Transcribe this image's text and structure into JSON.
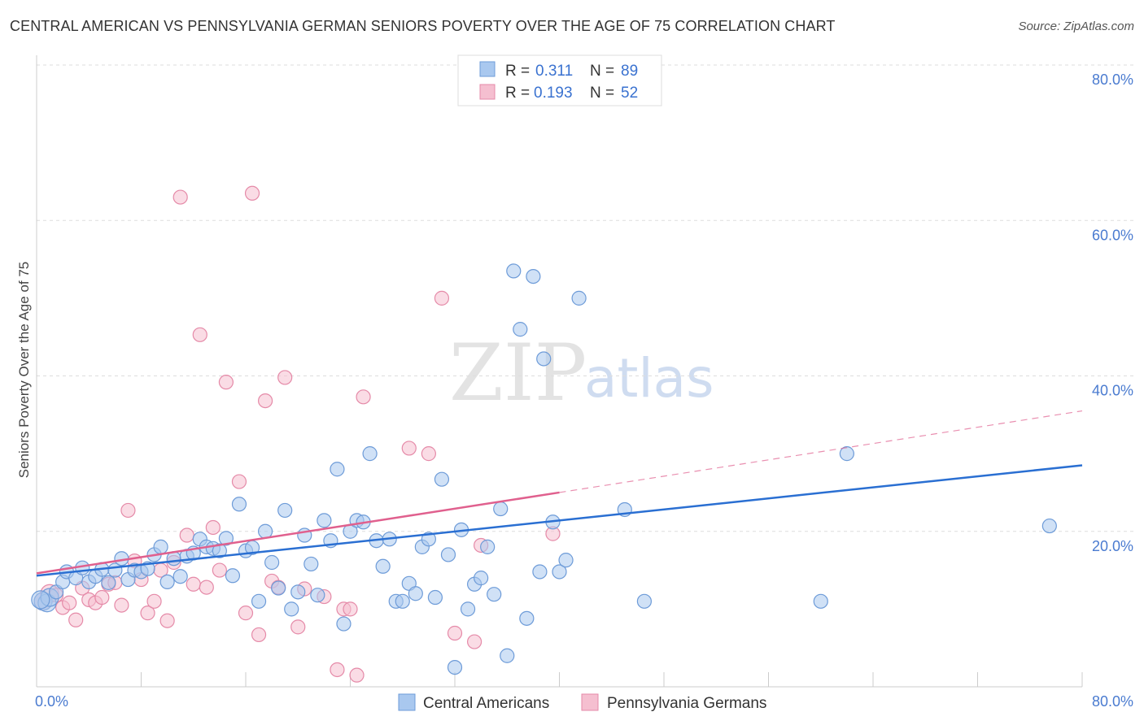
{
  "title": "CENTRAL AMERICAN VS PENNSYLVANIA GERMAN SENIORS POVERTY OVER THE AGE OF 75 CORRELATION CHART",
  "source": "Source: ZipAtlas.com",
  "watermark": {
    "zip": "ZIP",
    "atlas": "atlas"
  },
  "colors": {
    "blue_fill": "#a9c8ef",
    "blue_stroke": "#6d9bd8",
    "blue_line": "#2a6fd2",
    "pink_fill": "#f5bfd0",
    "pink_stroke": "#e58aa8",
    "pink_line": "#e0608e",
    "grid": "#dddddd",
    "axis_label": "#4a7bd0"
  },
  "legend": {
    "series": [
      {
        "r_label": "R =",
        "r_value": "0.311",
        "n_label": "N =",
        "n_value": "89"
      },
      {
        "r_label": "R =",
        "r_value": "0.193",
        "n_label": "N =",
        "n_value": "52"
      }
    ]
  },
  "chart_data": {
    "type": "scatter",
    "title": "CENTRAL AMERICAN VS PENNSYLVANIA GERMAN SENIORS POVERTY OVER THE AGE OF 75 CORRELATION CHART",
    "xlabel": "",
    "ylabel": "Seniors Poverty Over the Age of 75",
    "xlim": [
      0,
      80
    ],
    "ylim": [
      0,
      80
    ],
    "x_tick_labels": [
      "0.0%",
      "80.0%"
    ],
    "y_tick_labels": [
      "20.0%",
      "40.0%",
      "60.0%",
      "80.0%"
    ],
    "y_ticks": [
      20,
      40,
      60,
      80
    ],
    "grid": true,
    "legend_position": "top-center",
    "series": [
      {
        "name": "Central Americans",
        "r": 0.311,
        "n": 89,
        "trend": {
          "x": [
            0,
            80
          ],
          "y": [
            14.3,
            28.5
          ],
          "dashed_from": null
        },
        "points": [
          [
            0.5,
            11.0
          ],
          [
            0.8,
            10.8
          ],
          [
            1.0,
            11.5
          ],
          [
            1.5,
            12.2
          ],
          [
            2.0,
            13.5
          ],
          [
            2.3,
            14.8
          ],
          [
            3.0,
            14.0
          ],
          [
            3.5,
            15.3
          ],
          [
            4.0,
            13.5
          ],
          [
            4.5,
            14.2
          ],
          [
            5.0,
            15.1
          ],
          [
            5.5,
            13.4
          ],
          [
            6.0,
            15.0
          ],
          [
            6.5,
            16.5
          ],
          [
            7.0,
            13.8
          ],
          [
            7.5,
            15.0
          ],
          [
            8.0,
            14.8
          ],
          [
            8.5,
            15.2
          ],
          [
            9.0,
            17.0
          ],
          [
            9.5,
            18.0
          ],
          [
            10.0,
            13.5
          ],
          [
            10.5,
            16.5
          ],
          [
            11.0,
            14.2
          ],
          [
            11.5,
            16.8
          ],
          [
            12.0,
            17.2
          ],
          [
            12.5,
            19.0
          ],
          [
            13.0,
            18.0
          ],
          [
            13.5,
            17.8
          ],
          [
            14.0,
            17.5
          ],
          [
            14.5,
            19.1
          ],
          [
            15.0,
            14.3
          ],
          [
            15.5,
            23.5
          ],
          [
            16.0,
            17.5
          ],
          [
            16.5,
            17.9
          ],
          [
            17.0,
            11.0
          ],
          [
            17.5,
            20.0
          ],
          [
            18.0,
            16.0
          ],
          [
            18.5,
            12.7
          ],
          [
            19.0,
            22.7
          ],
          [
            19.5,
            10.0
          ],
          [
            20.0,
            12.2
          ],
          [
            20.5,
            19.5
          ],
          [
            21.0,
            15.8
          ],
          [
            21.5,
            11.8
          ],
          [
            22.0,
            21.4
          ],
          [
            22.5,
            18.8
          ],
          [
            23.0,
            28.0
          ],
          [
            23.5,
            8.1
          ],
          [
            24.0,
            20.0
          ],
          [
            24.5,
            21.4
          ],
          [
            25.0,
            21.2
          ],
          [
            25.5,
            30.0
          ],
          [
            26.0,
            18.8
          ],
          [
            26.5,
            15.5
          ],
          [
            27.0,
            19.0
          ],
          [
            27.5,
            11.0
          ],
          [
            28.0,
            11.0
          ],
          [
            28.5,
            13.3
          ],
          [
            29.0,
            12.0
          ],
          [
            29.5,
            18.0
          ],
          [
            30.0,
            19.0
          ],
          [
            30.5,
            11.5
          ],
          [
            31.0,
            26.7
          ],
          [
            31.5,
            17.0
          ],
          [
            32.0,
            2.5
          ],
          [
            32.5,
            20.2
          ],
          [
            33.0,
            10.0
          ],
          [
            33.5,
            13.2
          ],
          [
            34.0,
            14.0
          ],
          [
            34.5,
            18.0
          ],
          [
            35.0,
            11.9
          ],
          [
            35.5,
            22.9
          ],
          [
            36.0,
            4.0
          ],
          [
            36.5,
            53.5
          ],
          [
            37.0,
            46.0
          ],
          [
            37.5,
            8.8
          ],
          [
            38.0,
            52.8
          ],
          [
            38.5,
            14.8
          ],
          [
            38.8,
            42.2
          ],
          [
            39.5,
            21.2
          ],
          [
            40.0,
            14.8
          ],
          [
            40.5,
            16.3
          ],
          [
            41.5,
            50.0
          ],
          [
            45.0,
            22.8
          ],
          [
            46.5,
            11.0
          ],
          [
            62.0,
            30.0
          ],
          [
            60.0,
            11.0
          ],
          [
            77.5,
            20.7
          ],
          [
            0.3,
            11.2
          ]
        ]
      },
      {
        "name": "Pennsylvania Germans",
        "r": 0.193,
        "n": 52,
        "trend": {
          "x": [
            0,
            40,
            80
          ],
          "y": [
            14.6,
            25.0,
            35.5
          ],
          "dashed_from": 40
        },
        "points": [
          [
            0.5,
            11.0
          ],
          [
            1.0,
            12.0
          ],
          [
            1.5,
            11.8
          ],
          [
            2.0,
            10.2
          ],
          [
            2.5,
            10.8
          ],
          [
            3.0,
            8.6
          ],
          [
            3.5,
            12.7
          ],
          [
            4.0,
            11.2
          ],
          [
            4.5,
            10.8
          ],
          [
            5.0,
            11.5
          ],
          [
            5.5,
            13.2
          ],
          [
            6.0,
            13.4
          ],
          [
            6.5,
            10.5
          ],
          [
            7.0,
            22.7
          ],
          [
            7.5,
            16.2
          ],
          [
            8.0,
            13.8
          ],
          [
            8.5,
            9.5
          ],
          [
            9.0,
            11.0
          ],
          [
            9.5,
            15.0
          ],
          [
            10.0,
            8.5
          ],
          [
            10.5,
            16.0
          ],
          [
            11.0,
            63.0
          ],
          [
            11.5,
            19.5
          ],
          [
            12.0,
            13.2
          ],
          [
            12.5,
            45.3
          ],
          [
            13.0,
            12.8
          ],
          [
            13.5,
            20.5
          ],
          [
            14.0,
            15.0
          ],
          [
            14.5,
            39.2
          ],
          [
            15.5,
            26.4
          ],
          [
            16.0,
            9.5
          ],
          [
            16.5,
            63.5
          ],
          [
            17.0,
            6.7
          ],
          [
            17.5,
            36.8
          ],
          [
            18.0,
            13.6
          ],
          [
            18.5,
            12.8
          ],
          [
            19.0,
            39.8
          ],
          [
            20.0,
            7.7
          ],
          [
            20.5,
            12.6
          ],
          [
            22.0,
            11.6
          ],
          [
            23.0,
            2.2
          ],
          [
            23.5,
            10.0
          ],
          [
            24.0,
            10.0
          ],
          [
            24.5,
            1.5
          ],
          [
            25.0,
            37.3
          ],
          [
            28.5,
            30.7
          ],
          [
            30.0,
            30.0
          ],
          [
            31.0,
            50.0
          ],
          [
            32.0,
            6.9
          ],
          [
            33.5,
            5.8
          ],
          [
            34.0,
            18.2
          ],
          [
            39.5,
            19.7
          ]
        ]
      }
    ]
  }
}
